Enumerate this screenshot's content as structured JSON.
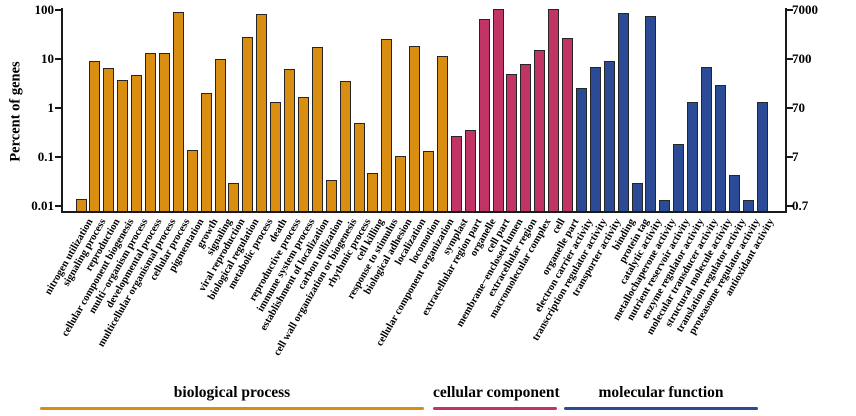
{
  "chart_data": {
    "type": "bar",
    "title": "",
    "ylabel": "Percent of genes",
    "yscale": "log",
    "ylim_left": [
      0.01,
      100
    ],
    "ylim_right": [
      0.7,
      7000
    ],
    "left_ticks": [
      "100",
      "10",
      "1",
      "0.1",
      "0.01"
    ],
    "right_ticks": [
      "7000",
      "700",
      "70",
      "7",
      "0.7"
    ],
    "grid": false,
    "legend_position": "bottom",
    "groups": [
      {
        "name": "biological process",
        "color": "#D98E12",
        "bars": [
          {
            "label": "nitrogen utilization",
            "value": 0.014
          },
          {
            "label": "signaling process",
            "value": 9
          },
          {
            "label": "reproduction",
            "value": 6.5
          },
          {
            "label": "cellular component biogenesis",
            "value": 3.8
          },
          {
            "label": "multi−organism process",
            "value": 4.8
          },
          {
            "label": "developmental process",
            "value": 13
          },
          {
            "label": "multicellular organismal process",
            "value": 13
          },
          {
            "label": "cellular process",
            "value": 91
          },
          {
            "label": "pigmentation",
            "value": 0.14
          },
          {
            "label": "growth",
            "value": 2
          },
          {
            "label": "signaling",
            "value": 10
          },
          {
            "label": "viral reproduction",
            "value": 0.03
          },
          {
            "label": "biological regulation",
            "value": 28
          },
          {
            "label": "metabolic process",
            "value": 82
          },
          {
            "label": "death",
            "value": 1.3
          },
          {
            "label": "reproductive process",
            "value": 6.2
          },
          {
            "label": "immune system process",
            "value": 1.7
          },
          {
            "label": "establishment of localization",
            "value": 17.5
          },
          {
            "label": "carbon utilization",
            "value": 0.034
          },
          {
            "label": "cell wall organization or biogenesis",
            "value": 3.5
          },
          {
            "label": "rhythmic process",
            "value": 0.5
          },
          {
            "label": "cell killing",
            "value": 0.047
          },
          {
            "label": "response to stimulus",
            "value": 26
          },
          {
            "label": "biological adhesion",
            "value": 0.105
          },
          {
            "label": "localization",
            "value": 18.5
          },
          {
            "label": "locomotion",
            "value": 0.13
          },
          {
            "label": "cellular component organization",
            "value": 11.5
          }
        ]
      },
      {
        "name": "cellular component",
        "color": "#C23366",
        "bars": [
          {
            "label": "symplast",
            "value": 0.27
          },
          {
            "label": "extracellular region part",
            "value": 0.36
          },
          {
            "label": "organelle",
            "value": 66
          },
          {
            "label": "cell part",
            "value": 103
          },
          {
            "label": "membrane−enclosed lumen",
            "value": 4.9
          },
          {
            "label": "extracellular region",
            "value": 7.8
          },
          {
            "label": "macromolecular complex",
            "value": 15.5
          },
          {
            "label": "cell",
            "value": 103
          },
          {
            "label": "organelle part",
            "value": 27
          }
        ]
      },
      {
        "name": "molecular function",
        "color": "#2C4B97",
        "bars": [
          {
            "label": "electron carrier activity",
            "value": 2.6
          },
          {
            "label": "transcription regulator activity",
            "value": 6.9
          },
          {
            "label": "transporter activity",
            "value": 9.2
          },
          {
            "label": "binding",
            "value": 88
          },
          {
            "label": "protein tag",
            "value": 0.029
          },
          {
            "label": "catalytic activity",
            "value": 76
          },
          {
            "label": "metallochaperone activity",
            "value": 0.013
          },
          {
            "label": "nutrient reservoir activity",
            "value": 0.185
          },
          {
            "label": "enzyme regulator activity",
            "value": 1.3
          },
          {
            "label": "molecular transducer activity",
            "value": 6.9
          },
          {
            "label": "structural molecule activity",
            "value": 2.9
          },
          {
            "label": "translation regulator activity",
            "value": 0.042
          },
          {
            "label": "proteasome regulator activity",
            "value": 0.013
          },
          {
            "label": "antioxidant activity",
            "value": 1.3
          }
        ]
      }
    ]
  }
}
